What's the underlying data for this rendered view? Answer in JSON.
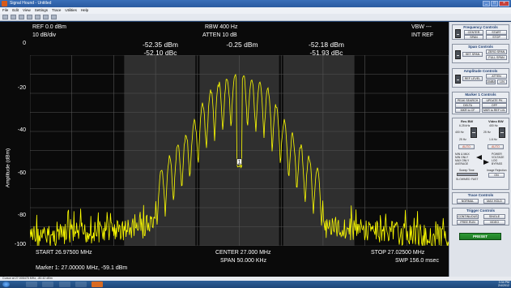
{
  "window": {
    "title": "Signal Hound - Untitled"
  },
  "menu": [
    "File",
    "Edit",
    "View",
    "Settings",
    "Trace",
    "Utilities",
    "Help"
  ],
  "display": {
    "ref_level": "REF 0.0 dBm",
    "scale": "10 dB/div",
    "rbw": "RBW 400 Hz",
    "atten": "ATTEN 10 dB",
    "vbw": "VBW ---",
    "ref_source": "INT REF",
    "y_axis_label": "Amplitude (dBm)",
    "y_ticks": [
      "0",
      "-20",
      "-40",
      "-60",
      "-80",
      "-100"
    ],
    "start": "START 26.97500 MHz",
    "center": "CENTER 27.000 MHz",
    "stop": "STOP 27.02500 MHz",
    "span": "SPAN 50.000 KHz",
    "sweep": "SWP 156.0 msec",
    "marker_readout": "Marker 1: 27.00000 MHz, -59.1 dBm",
    "marker_label": "1",
    "bands": [
      {
        "line1": "-52.35 dBm",
        "line2": "-52.10 dBc"
      },
      {
        "line1": "-0.25 dBm",
        "line2": ""
      },
      {
        "line1": "-52.18 dBm",
        "line2": "-51.93 dBc"
      }
    ]
  },
  "panel": {
    "frequency": {
      "title": "Frequency Controls",
      "center": "CENTER",
      "start": "START",
      "span": "SPAN",
      "stop": "STOP"
    },
    "span": {
      "title": "Span Controls",
      "set_span": "SET SPAN",
      "zero_span": "ZERO SPAN",
      "full_span": "FULL SPAN"
    },
    "amplitude": {
      "title": "Amplitude Controls",
      "ref_level": "REF LEVEL",
      "atten": "ATTEN",
      "mode_left": "10dB/d",
      "mode_right": "LIN"
    },
    "marker": {
      "title": "Marker 1 Controls",
      "peak_search": "PEAK SEARCH",
      "update_pk": "UPDATE PK",
      "delta": "DELTA",
      "off": "OFF",
      "mkr_cf": "MKR to CF",
      "mkr_ref": "MKR to REF LVL"
    },
    "bw": {
      "res_title": "Res BW",
      "vid_title": "Video BW",
      "res_values": [
        "6.25 kHz",
        "400 Hz",
        "25 Hz"
      ],
      "vid_values": [
        "400 Hz",
        "25 Hz",
        "1.6 Hz"
      ],
      "res_auto": "AUTO",
      "vid_auto": "AUTO",
      "detector_left": [
        "MIN & MAX",
        "MIN ONLY",
        "MAX ONLY",
        "AVERAGE"
      ],
      "detector_right": [
        "POWER",
        "VOLTAGE",
        "LOG",
        "BYPASS"
      ],
      "sweep_time": "Sweep Time",
      "speed": [
        "SLOW",
        "MED",
        "FAST"
      ],
      "image_rej": "Image Rejection",
      "image_rej_state": "ON"
    },
    "trace": {
      "title": "Trace Controls",
      "normal": "NORMAL",
      "max_hold": "MAX HOLD"
    },
    "trigger": {
      "title": "Trigger Controls",
      "continuous": "CONTINUOUS",
      "single": "SINGLE",
      "free_run": "FREE RUN",
      "video": "VIDEO"
    },
    "preset": "PRESET"
  },
  "status": {
    "text": "Cursor at 27.005475 MHz, -80.42 dBm"
  },
  "taskbar": {
    "time": "3:34 PM",
    "date": "2/4/2012"
  },
  "colors": {
    "trace": "#ffff00",
    "band": "#2f2f2f",
    "plot_bg": "#0a0a0a",
    "grid": "#555555"
  }
}
